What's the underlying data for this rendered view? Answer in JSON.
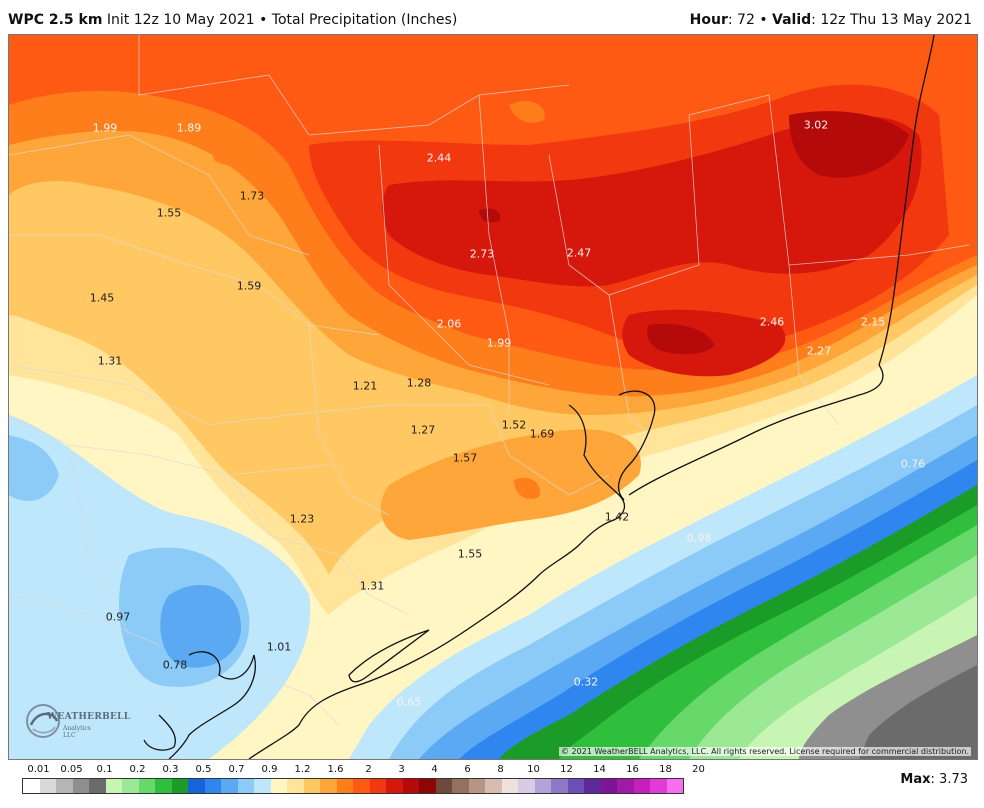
{
  "header": {
    "model": "WPC 2.5 km",
    "init": "Init 12z 10 May 2021",
    "sep": "•",
    "field": "Total Precipitation (Inches)",
    "hour_label": "Hour",
    "hour_value": ": 72",
    "valid_label": "Valid",
    "valid_value": ": 12z Thu 13 May 2021"
  },
  "map": {
    "labels": [
      "1.99",
      "1.89",
      "2.44",
      "3.02",
      "1.73",
      "1.55",
      "2.73",
      "2.47",
      "1.59",
      "1.45",
      "2.06",
      "1.99",
      "2.46",
      "2.15",
      "2.27",
      "1.31",
      "1.21",
      "1.28",
      "1.27",
      "1.52",
      "1.69",
      "1.57",
      "0.76",
      "1.23",
      "1.42",
      "0.98",
      "1.55",
      "1.31",
      "0.97",
      "1.01",
      "0.78",
      "0.32",
      "0.65"
    ],
    "copyright": "© 2021 WeatherBELL Analytics, LLC. All rights reserved. License required for commercial distribution.",
    "logo_text": "WEATHERBELL",
    "logo_subtext": "Analytics LLC"
  },
  "colorbar": {
    "tick_labels": [
      "0.01",
      "0.05",
      "0.1",
      "0.2",
      "0.3",
      "0.5",
      "0.7",
      "0.9",
      "1.2",
      "1.6",
      "2",
      "3",
      "4",
      "6",
      "8",
      "10",
      "12",
      "14",
      "16",
      "18",
      "20"
    ],
    "colors": [
      "#ffffff",
      "#d9d9d9",
      "#b5b5b5",
      "#8f8f8f",
      "#6b6b6b",
      "#c8f5b4",
      "#9be895",
      "#66d96a",
      "#2fbf3c",
      "#1b9c28",
      "#1565d8",
      "#2e86ee",
      "#5aa9f2",
      "#8ccaf7",
      "#bfe7fb",
      "#fff6c4",
      "#ffe49a",
      "#ffc862",
      "#ffa63a",
      "#ff7e1c",
      "#ff5a14",
      "#f2380f",
      "#d6170b",
      "#b40a0a",
      "#8c0606",
      "#6e4a3c",
      "#96705f",
      "#b79585",
      "#d6bcb1",
      "#f0e1dc",
      "#d7cbe6",
      "#b4a3d6",
      "#8f79c6",
      "#6d50b5",
      "#5e2a9a",
      "#7d1595",
      "#a01aa6",
      "#c61fbd",
      "#e33cd6",
      "#f86ef0"
    ]
  },
  "max": {
    "label": "Max",
    "value": ": 3.73"
  }
}
